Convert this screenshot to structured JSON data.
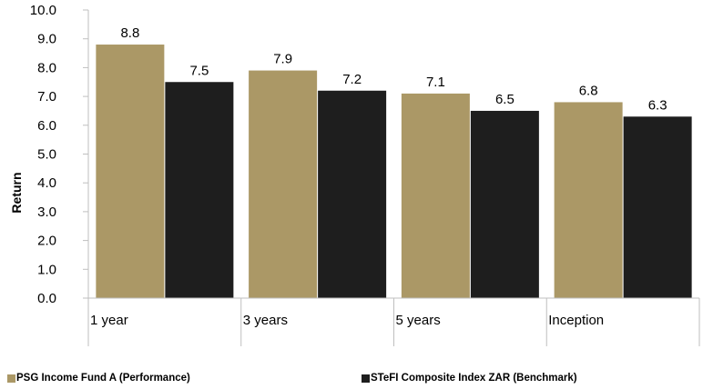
{
  "chart_data": {
    "type": "bar",
    "categories": [
      "1 year",
      "3 years",
      "5 years",
      "Inception"
    ],
    "series": [
      {
        "name": "PSG Income Fund A (Performance)",
        "values": [
          8.8,
          7.9,
          7.1,
          6.8
        ],
        "color": "#ab9866"
      },
      {
        "name": "STeFI Composite Index ZAR (Benchmark)",
        "values": [
          7.5,
          7.2,
          6.5,
          6.3
        ],
        "color": "#1e1e1e"
      }
    ],
    "ylabel": "Return",
    "ylim": [
      0,
      10
    ],
    "yticks": [
      "0.0",
      "1.0",
      "2.0",
      "3.0",
      "4.0",
      "5.0",
      "6.0",
      "7.0",
      "8.0",
      "9.0",
      "10.0"
    ],
    "legend_position": "bottom",
    "grid": false
  }
}
